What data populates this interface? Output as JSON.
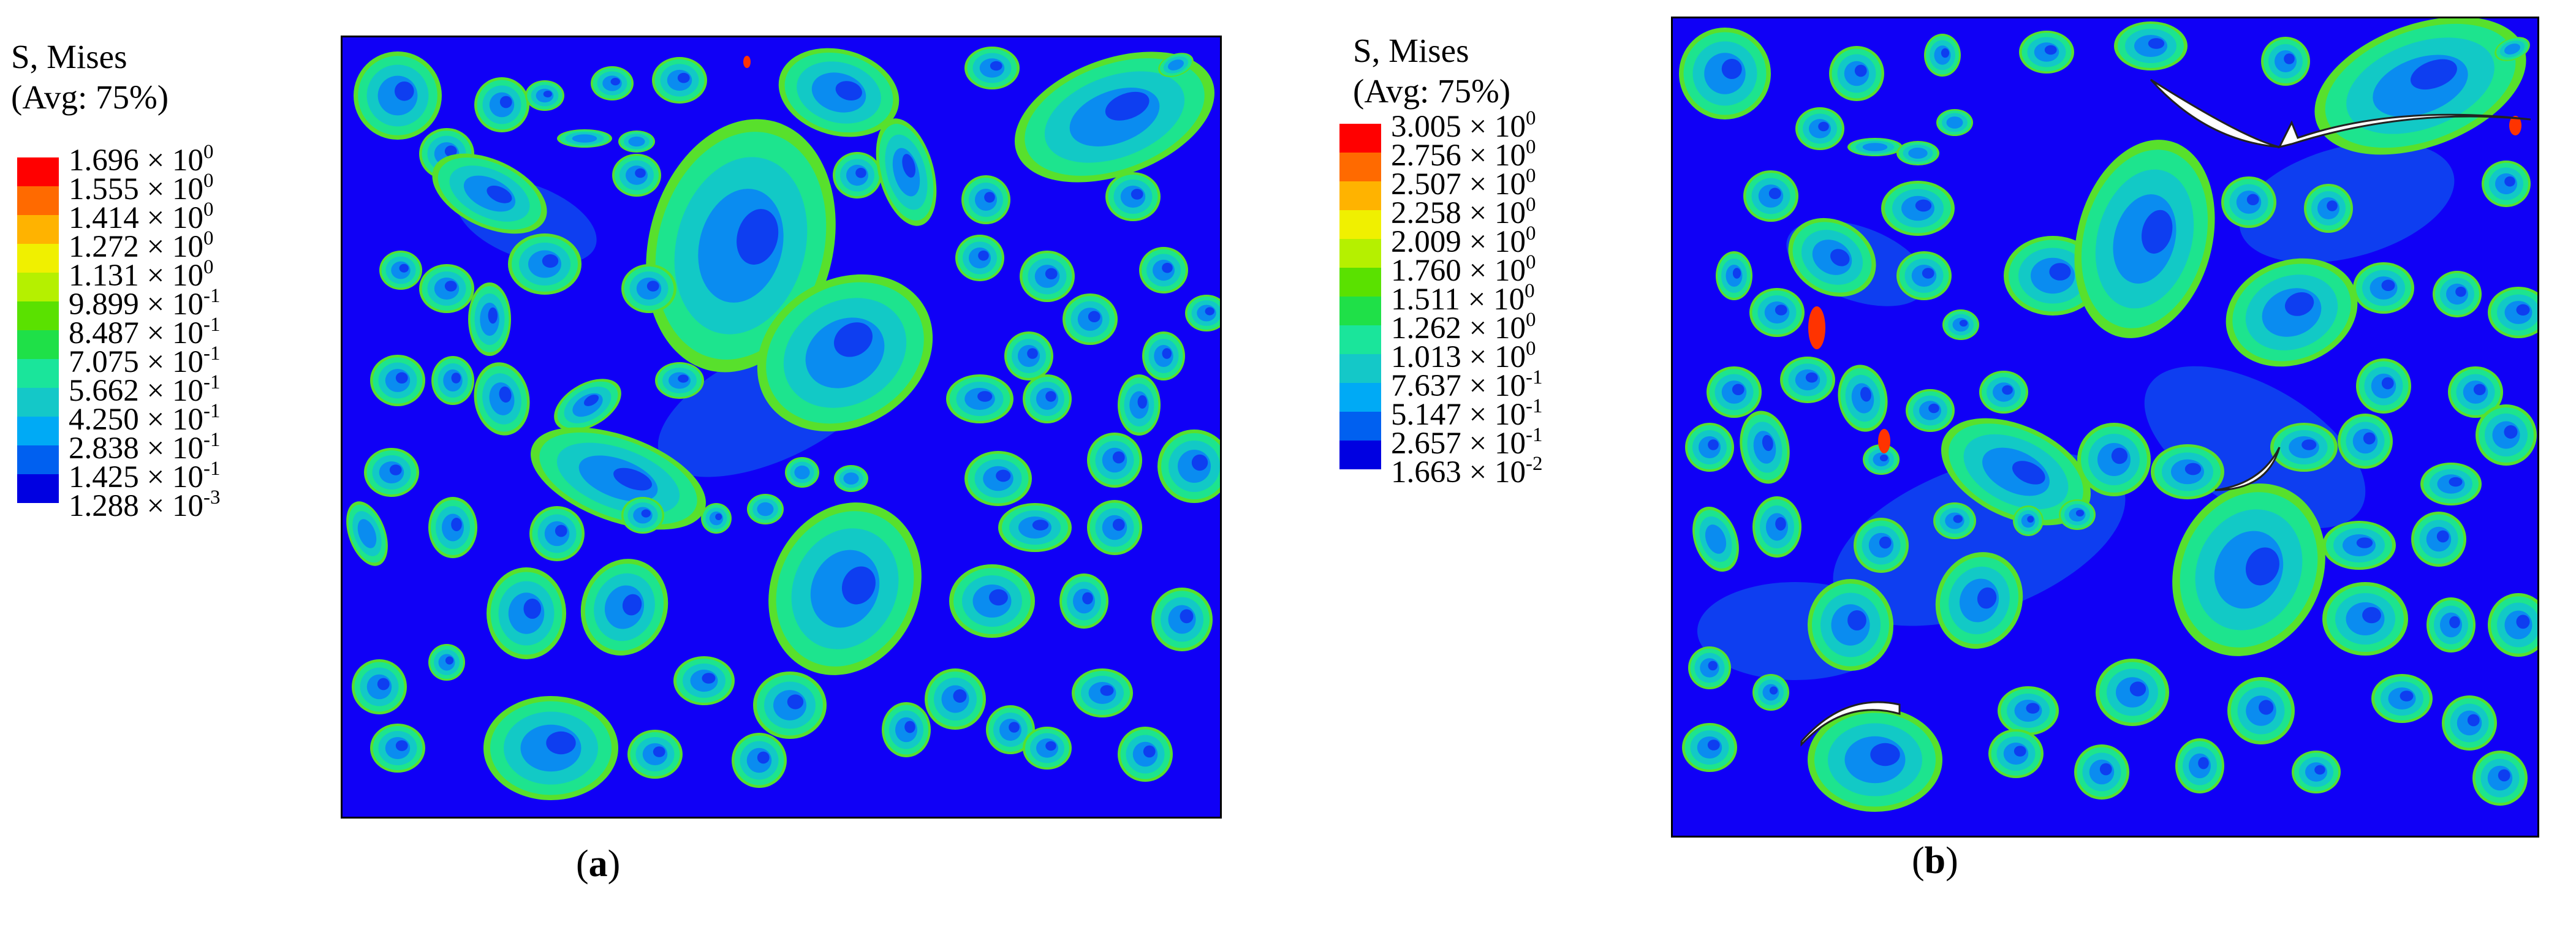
{
  "legend_colors": [
    "#ff0000",
    "#ff6a00",
    "#ffb300",
    "#f0f000",
    "#b5f000",
    "#5ae100",
    "#1fe048",
    "#1ae59b",
    "#14c8c8",
    "#00aaf5",
    "#0060f0",
    "#0000e1"
  ],
  "contour_colors": {
    "matrix": "#1000f6",
    "matrix_patch": "#0e3ef0",
    "level_1": "#0a8cf0",
    "level_2": "#12c9c6",
    "level_3": "#1de48e",
    "level_4": "#58e02c",
    "level_hot": "#ff3300",
    "crack": "#ffffff"
  },
  "panels": [
    {
      "id": "a",
      "caption_open": "(",
      "caption_letter": "a",
      "caption_close": ")",
      "legend_title_line1": "S, Mises",
      "legend_title_line2": "(Avg: 75%)",
      "legend_values": [
        {
          "mantissa": "1.696",
          "exponent": "0"
        },
        {
          "mantissa": "1.555",
          "exponent": "0"
        },
        {
          "mantissa": "1.414",
          "exponent": "0"
        },
        {
          "mantissa": "1.272",
          "exponent": "0"
        },
        {
          "mantissa": "1.131",
          "exponent": "0"
        },
        {
          "mantissa": "9.899",
          "exponent": "-1"
        },
        {
          "mantissa": "8.487",
          "exponent": "-1"
        },
        {
          "mantissa": "7.075",
          "exponent": "-1"
        },
        {
          "mantissa": "5.662",
          "exponent": "-1"
        },
        {
          "mantissa": "4.250",
          "exponent": "-1"
        },
        {
          "mantissa": "2.838",
          "exponent": "-1"
        },
        {
          "mantissa": "1.425",
          "exponent": "-1"
        },
        {
          "mantissa": "1.288",
          "exponent": "-3"
        }
      ]
    },
    {
      "id": "b",
      "caption_open": "(",
      "caption_letter": "b",
      "caption_close": ")",
      "legend_title_line1": "S, Mises",
      "legend_title_line2": "(Avg: 75%)",
      "legend_values": [
        {
          "mantissa": "3.005",
          "exponent": "0"
        },
        {
          "mantissa": "2.756",
          "exponent": "0"
        },
        {
          "mantissa": "2.507",
          "exponent": "0"
        },
        {
          "mantissa": "2.258",
          "exponent": "0"
        },
        {
          "mantissa": "2.009",
          "exponent": "0"
        },
        {
          "mantissa": "1.760",
          "exponent": "0"
        },
        {
          "mantissa": "1.511",
          "exponent": "0"
        },
        {
          "mantissa": "1.262",
          "exponent": "0"
        },
        {
          "mantissa": "1.013",
          "exponent": "0"
        },
        {
          "mantissa": "7.637",
          "exponent": "-1"
        },
        {
          "mantissa": "5.147",
          "exponent": "-1"
        },
        {
          "mantissa": "2.657",
          "exponent": "-1"
        },
        {
          "mantissa": "1.663",
          "exponent": "-2"
        }
      ]
    }
  ],
  "times_sign": "×",
  "base_ten": "10"
}
